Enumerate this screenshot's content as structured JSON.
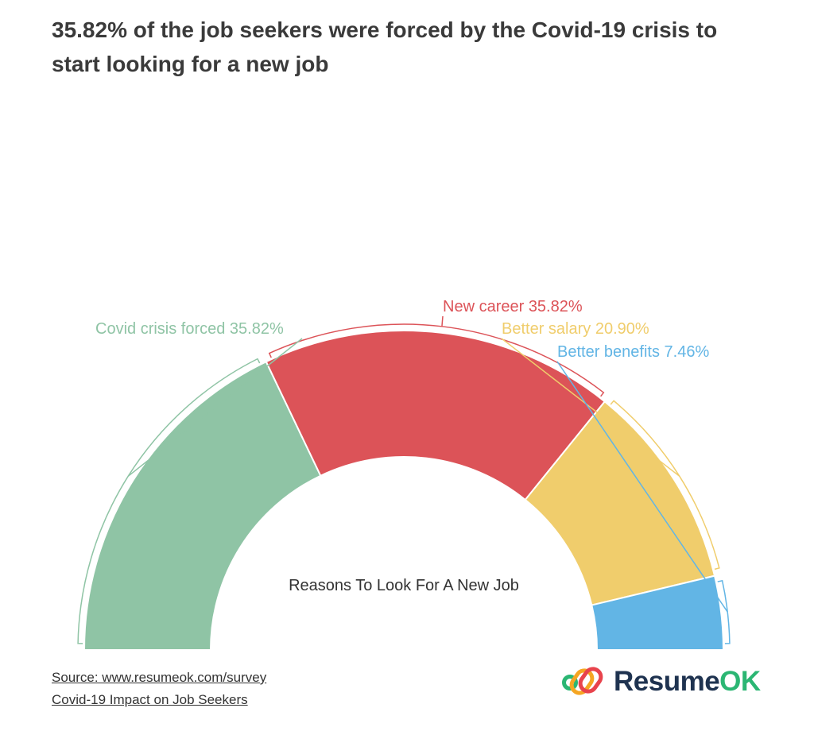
{
  "title": "35.82% of the job seekers were forced by the Covid-19 crisis to start looking for a new job",
  "chart_data": {
    "type": "pie",
    "style": "semi-donut",
    "title": "Reasons To Look For A New Job",
    "slices": [
      {
        "label": "Covid crisis forced 35.82%",
        "name": "Covid crisis forced",
        "value": 35.82,
        "color": "#8fc4a5"
      },
      {
        "label": "New career 35.82%",
        "name": "New career",
        "value": 35.82,
        "color": "#dc5358"
      },
      {
        "label": "Better salary 20.90%",
        "name": "Better salary",
        "value": 20.9,
        "color": "#f0cd6c"
      },
      {
        "label": "Better benefits 7.46%",
        "name": "Better benefits",
        "value": 7.46,
        "color": "#62b5e5"
      }
    ]
  },
  "source": {
    "line1": "Source: www.resumeok.com/survey",
    "line2": "Covid-19 Impact on Job Seekers"
  },
  "logo": {
    "name_part1": "Resume",
    "name_part2": "OK"
  }
}
